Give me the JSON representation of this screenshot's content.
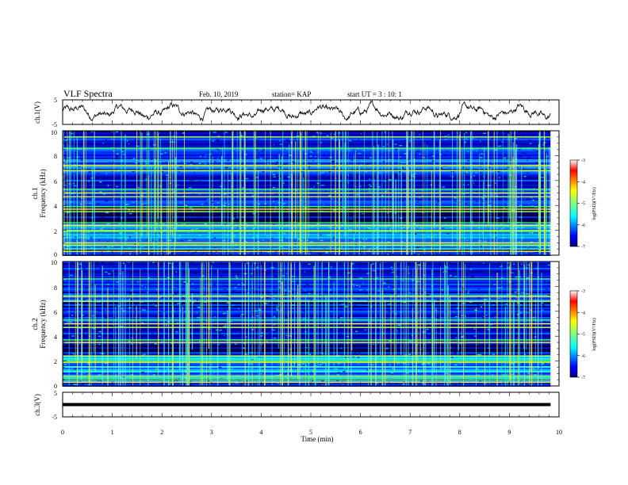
{
  "header": {
    "title": "VLF Spectra",
    "date": "Feb. 10, 2019",
    "station": "station= KAP",
    "start_ut": "start  UT =  3 : 10: 1"
  },
  "chart_data": [
    {
      "type": "line",
      "panel": "ch1-waveform",
      "ylabel": "ch.1(V)",
      "ylim": [
        -5,
        5
      ],
      "y_ticks": [
        "5",
        "-5"
      ],
      "xlim": [
        0,
        10
      ],
      "color": "#000000"
    },
    {
      "type": "heatmap",
      "panel": "ch1-spectrogram",
      "ylabel_line1": "ch.1",
      "ylabel_line2": "Frequency (kHz)",
      "ylim": [
        0,
        10
      ],
      "y_ticks": [
        "0",
        "2",
        "4",
        "6",
        "8",
        "10"
      ],
      "xlim": [
        0,
        9.83
      ],
      "colorbar": {
        "label": "log(PSD)(V²/Hz)",
        "range": [
          -7,
          -3
        ],
        "ticks": [
          "-3",
          "-4",
          "-5",
          "-6",
          "-7"
        ]
      },
      "lines_khz": [
        0.3,
        0.5,
        0.8,
        1.0,
        1.9,
        2.0,
        2.4,
        2.6,
        3.5,
        3.7,
        3.9,
        4.7,
        5.0,
        5.3,
        6.8,
        7.2,
        8.6,
        9.5
      ]
    },
    {
      "type": "heatmap",
      "panel": "ch2-spectrogram",
      "ylabel_line1": "ch.2",
      "ylabel_line2": "Frequency (kHz)",
      "ylim": [
        0,
        10
      ],
      "y_ticks": [
        "0",
        "2",
        "4",
        "6",
        "8",
        "10"
      ],
      "xlim": [
        0,
        9.83
      ],
      "colorbar": {
        "label": "log(PSD)(V²/Hz)",
        "range": [
          -7,
          -3
        ],
        "ticks": [
          "-3",
          "-4",
          "-5",
          "-6",
          "-7"
        ]
      },
      "lines_khz": [
        0.3,
        0.5,
        0.8,
        1.9,
        2.0,
        2.4,
        3.5,
        3.7,
        4.7,
        5.0,
        5.3,
        6.8,
        7.2,
        8.6
      ]
    },
    {
      "type": "line",
      "panel": "ch3-waveform",
      "ylabel": "ch.3(V)",
      "ylim": [
        -5,
        5
      ],
      "y_ticks": [
        "5",
        "-5"
      ],
      "xlim": [
        0,
        10
      ],
      "constant_value": 0,
      "color": "#000000"
    }
  ],
  "x_axis": {
    "label": "Time  (min)",
    "ticks": [
      "0",
      "1",
      "2",
      "3",
      "4",
      "5",
      "6",
      "7",
      "8",
      "9",
      "10"
    ]
  }
}
